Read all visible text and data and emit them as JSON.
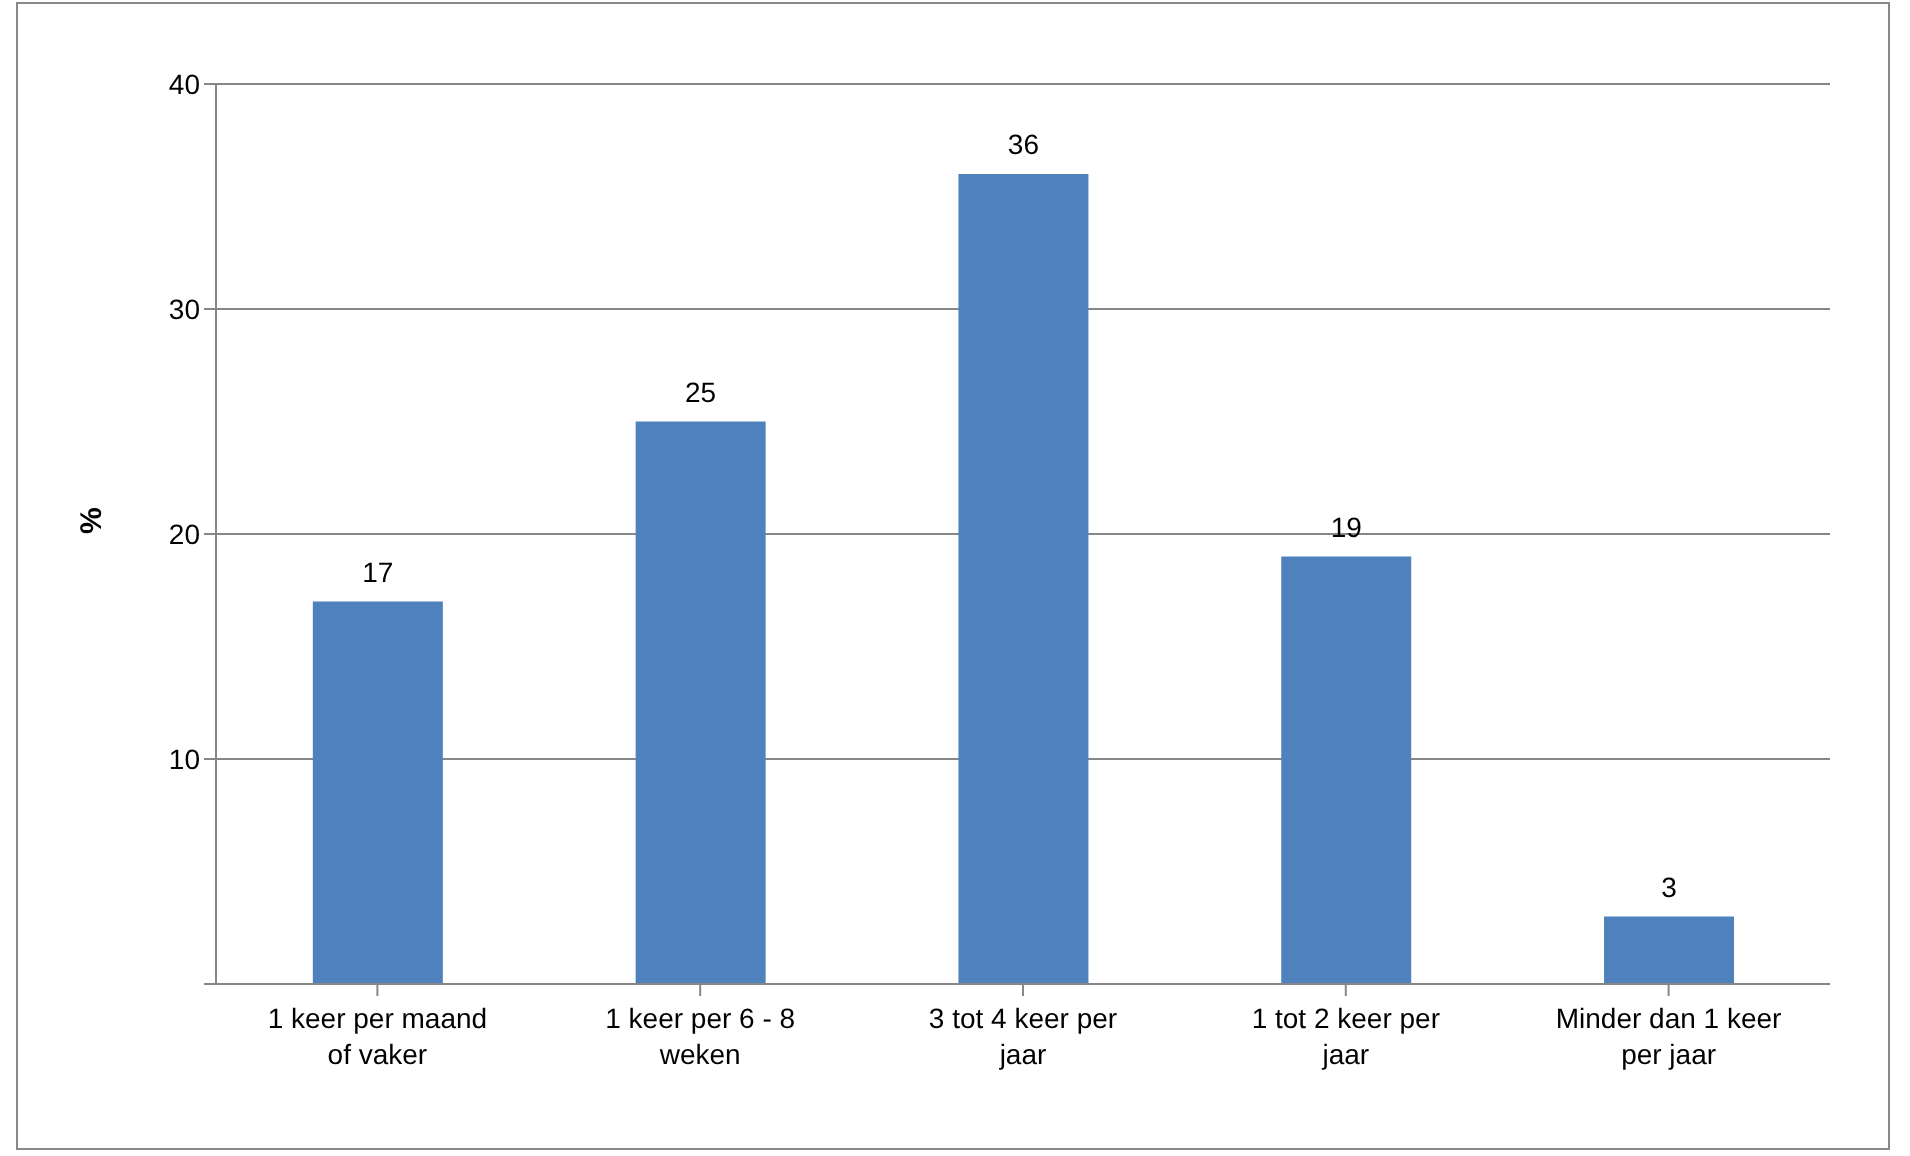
{
  "chart_data": {
    "type": "bar",
    "ylabel": "%",
    "categories": [
      "1 keer per maand of vaker",
      "1 keer per 6 - 8 weken",
      "3 tot 4 keer per jaar",
      "1 tot 2 keer per jaar",
      "Minder dan 1 keer per jaar"
    ],
    "values": [
      17,
      25,
      36,
      19,
      3
    ],
    "color": "#4f81bd",
    "ylim": [
      0,
      40
    ],
    "yticks": [
      {
        "value": 0,
        "label": null
      },
      10,
      20,
      30,
      40
    ],
    "grid": "y",
    "data_labels": true
  }
}
